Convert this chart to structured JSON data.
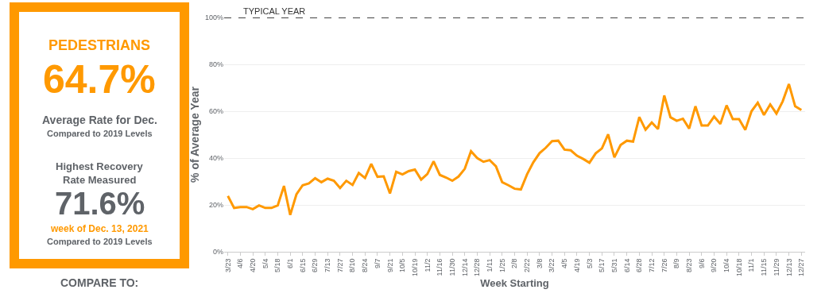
{
  "chart_data": [
    {
      "type": "other",
      "title": "PEDESTRIANS",
      "annotations": [
        "64.7%",
        "Average Rate for Dec.",
        "Compared to 2019 Levels",
        "Highest Recovery",
        "Rate Measured",
        "71.6%",
        "week of Dec. 13, 2021",
        "Compared to 2019 Levels",
        "COMPARE TO:"
      ]
    },
    {
      "type": "line",
      "ylabel": "% of Average Year",
      "xlabel": "Week Starting",
      "grid": "y",
      "marker": "none",
      "line_style": "solid",
      "categories": [
        "3/23",
        null,
        "4/6",
        null,
        "4/20",
        null,
        "5/4",
        null,
        "5/18",
        null,
        "6/1",
        null,
        "6/15",
        null,
        "6/29",
        null,
        "7/13",
        null,
        "7/27",
        null,
        "8/10",
        null,
        "8/24",
        null,
        "9/7",
        null,
        "9/21",
        null,
        "10/5",
        null,
        "10/19",
        null,
        "11/2",
        null,
        "11/16",
        null,
        "11/30",
        null,
        "12/14",
        null,
        "12/28",
        null,
        "1/11",
        null,
        "1/25",
        null,
        "2/8",
        null,
        "2/22",
        null,
        "3/8",
        null,
        "3/22",
        null,
        "4/5",
        null,
        "4/19",
        null,
        "5/3",
        null,
        "5/17",
        null,
        "5/31",
        null,
        "6/14",
        null,
        "6/28",
        null,
        "7/12",
        null,
        "7/26",
        null,
        "8/9",
        null,
        "8/23",
        null,
        "9/6",
        null,
        "9/20",
        null,
        "10/4",
        null,
        "10/18",
        null,
        "11/1",
        null,
        "11/15",
        null,
        "11/29",
        null,
        "12/13",
        null,
        "12/27"
      ],
      "series": [
        {
          "color": "#ff9900",
          "values": [
            23.8,
            18.7,
            19.1,
            19.1,
            18.2,
            19.8,
            18.7,
            18.7,
            19.8,
            28.1,
            15.7,
            24.5,
            28.4,
            29.2,
            31.4,
            29.7,
            31.2,
            30.3,
            27.2,
            30.3,
            28.5,
            33.6,
            31.5,
            37.5,
            32.0,
            32.2,
            24.9,
            34.1,
            33.0,
            34.4,
            35.1,
            30.8,
            33.2,
            38.6,
            32.8,
            31.7,
            30.3,
            32.1,
            35.4,
            42.9,
            40.0,
            38.4,
            39.1,
            36.5,
            29.7,
            28.4,
            26.9,
            26.6,
            33.1,
            38.2,
            42.1,
            44.4,
            47.2,
            47.4,
            43.6,
            43.3,
            41.0,
            39.6,
            38.0,
            42.0,
            44.1,
            50.1,
            40.3,
            45.6,
            47.4,
            47.0,
            57.5,
            52.1,
            55.2,
            52.4,
            66.7,
            57.4,
            55.9,
            56.8,
            52.6,
            62.1,
            53.9,
            53.9,
            57.7,
            54.6,
            62.5,
            56.6,
            56.6,
            52.0,
            60.0,
            63.6,
            58.4,
            62.9,
            59.0,
            64.2,
            71.6,
            62.1,
            60.5
          ]
        }
      ],
      "ylim": [
        0,
        100
      ],
      "yticks": [
        {
          "value": 0,
          "label": "0%"
        },
        {
          "value": 20,
          "label": "20%"
        },
        {
          "value": 40,
          "label": "40%"
        },
        {
          "value": 60,
          "label": "60%"
        },
        {
          "value": 80,
          "label": "80%"
        },
        {
          "value": 100,
          "label": "100%"
        }
      ],
      "ref_lines": [
        {
          "axis": "y",
          "value": 100,
          "label": "TYPICAL YEAR",
          "color": "#444444",
          "line_style": "dashed"
        }
      ]
    }
  ]
}
